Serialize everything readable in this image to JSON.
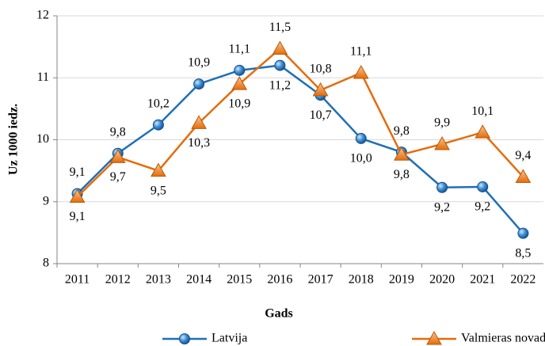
{
  "chart_data": {
    "type": "line",
    "y_label": "Uz 1000 iedz.",
    "x_label": "Gads",
    "categories": [
      "2011",
      "2012",
      "2013",
      "2014",
      "2015",
      "2016",
      "2017",
      "2018",
      "2019",
      "2020",
      "2021",
      "2022"
    ],
    "series": [
      {
        "name": "Latvija",
        "color": "#1f6fb5",
        "marker": "circle",
        "values": [
          9.13,
          9.78,
          10.24,
          10.9,
          11.12,
          11.2,
          10.72,
          10.02,
          9.8,
          9.23,
          9.24,
          8.49
        ],
        "value_labels": [
          "9,1",
          "9,8",
          "10,2",
          "10,9",
          "11,1",
          "11,2",
          "10,7",
          "10,0",
          "9,8",
          "9,2",
          "9,2",
          "8,5"
        ]
      },
      {
        "name": "Valmieras novads",
        "color": "#e46c0a",
        "marker": "triangle",
        "values": [
          9.08,
          9.72,
          9.5,
          10.27,
          10.9,
          11.47,
          10.8,
          11.08,
          9.76,
          9.93,
          10.12,
          9.4
        ],
        "value_labels": [
          "9,1",
          "9,7",
          "9,5",
          "10,3",
          "10,9",
          "11,5",
          "10,8",
          "11,1",
          "9,8",
          "9,9",
          "10,1",
          "9,4"
        ]
      }
    ],
    "ylim": [
      8,
      12
    ],
    "yticks": [
      8,
      9,
      10,
      11,
      12
    ],
    "grid": true,
    "legend": "bottom"
  }
}
